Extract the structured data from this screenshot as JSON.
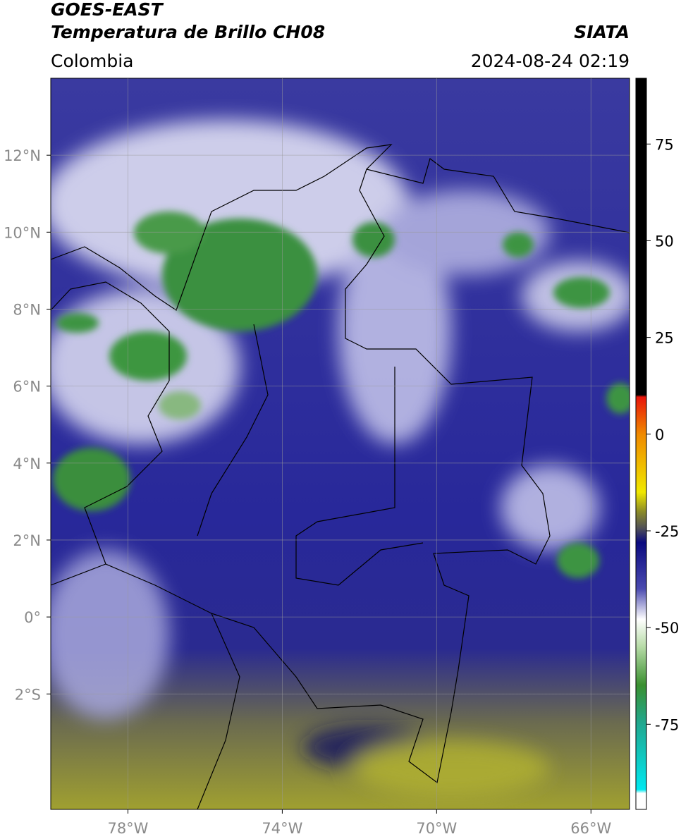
{
  "header": {
    "title": "GOES-EAST",
    "subtitle": "Temperatura de Brillo CH08",
    "source": "SIATA",
    "region": "Colombia",
    "datetime": "2024-08-24 02:19"
  },
  "map": {
    "xlim": [
      -80,
      -65
    ],
    "ylim": [
      -5,
      14
    ],
    "xticks": [
      {
        "value": -78,
        "label": "78°W"
      },
      {
        "value": -74,
        "label": "74°W"
      },
      {
        "value": -70,
        "label": "70°W"
      },
      {
        "value": -66,
        "label": "66°W"
      }
    ],
    "yticks": [
      {
        "value": 12,
        "label": "12°N"
      },
      {
        "value": 10,
        "label": "10°N"
      },
      {
        "value": 8,
        "label": "8°N"
      },
      {
        "value": 6,
        "label": "6°N"
      },
      {
        "value": 4,
        "label": "4°N"
      },
      {
        "value": 2,
        "label": "2°N"
      },
      {
        "value": 0,
        "label": "0°"
      },
      {
        "value": -2,
        "label": "2°S"
      }
    ],
    "grid": true
  },
  "colorbar": {
    "lim": [
      -97,
      92
    ],
    "ticks": [
      75,
      50,
      25,
      0,
      -25,
      -50,
      -75
    ]
  }
}
